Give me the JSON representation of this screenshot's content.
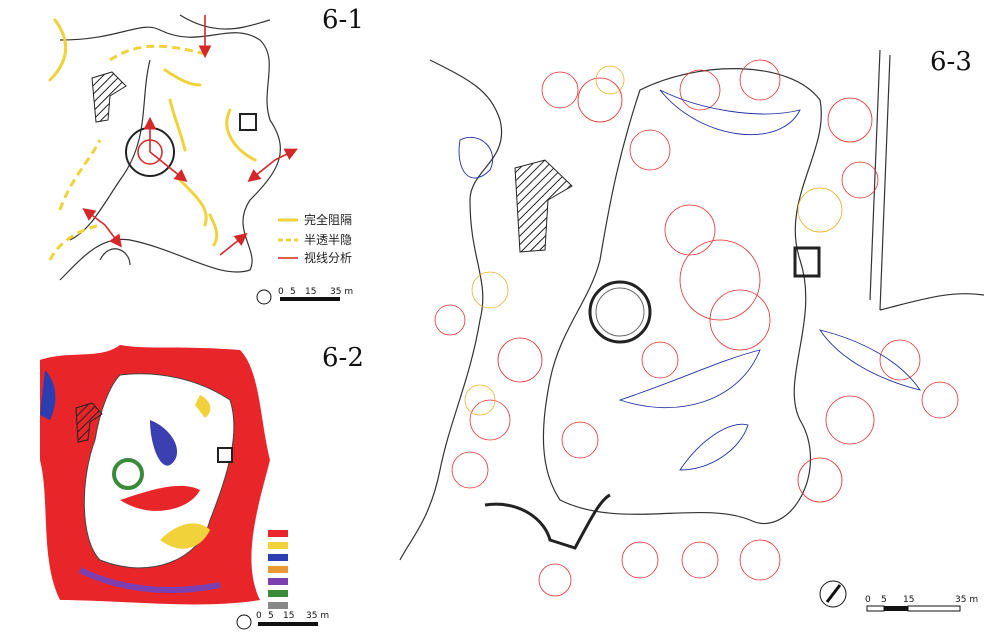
{
  "panels": [
    {
      "label": "6-1",
      "legend": [
        "完全阻隔",
        "半透半隐",
        "视线分析"
      ],
      "scale": [
        "0",
        "5",
        "15",
        "35 m"
      ]
    },
    {
      "label": "6-2",
      "scale": [
        "0",
        "5",
        "15",
        "35 m"
      ]
    },
    {
      "label": "6-3",
      "scale": [
        "0",
        "5",
        "15",
        "35 m"
      ]
    }
  ]
}
